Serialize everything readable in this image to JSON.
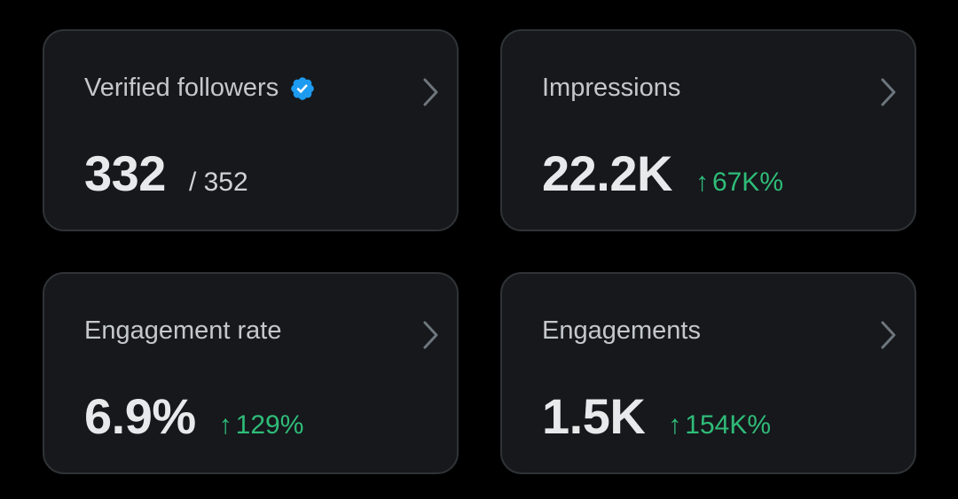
{
  "cards": [
    {
      "title": "Verified followers",
      "value": "332",
      "total": "/ 352"
    },
    {
      "title": "Impressions",
      "value": "22.2K",
      "change": "67K%"
    },
    {
      "title": "Engagement rate",
      "value": "6.9%",
      "change": "129%"
    },
    {
      "title": "Engagements",
      "value": "1.5K",
      "change": "154K%"
    }
  ],
  "icons": {
    "arrow": "↑",
    "verified": "verified-badge-icon",
    "chevron": "chevron-right-icon"
  },
  "colors": {
    "background": "#000000",
    "card": "#16181c",
    "border": "#2f3336",
    "positive": "#2fbc78",
    "verified": "#1d9bf0"
  }
}
